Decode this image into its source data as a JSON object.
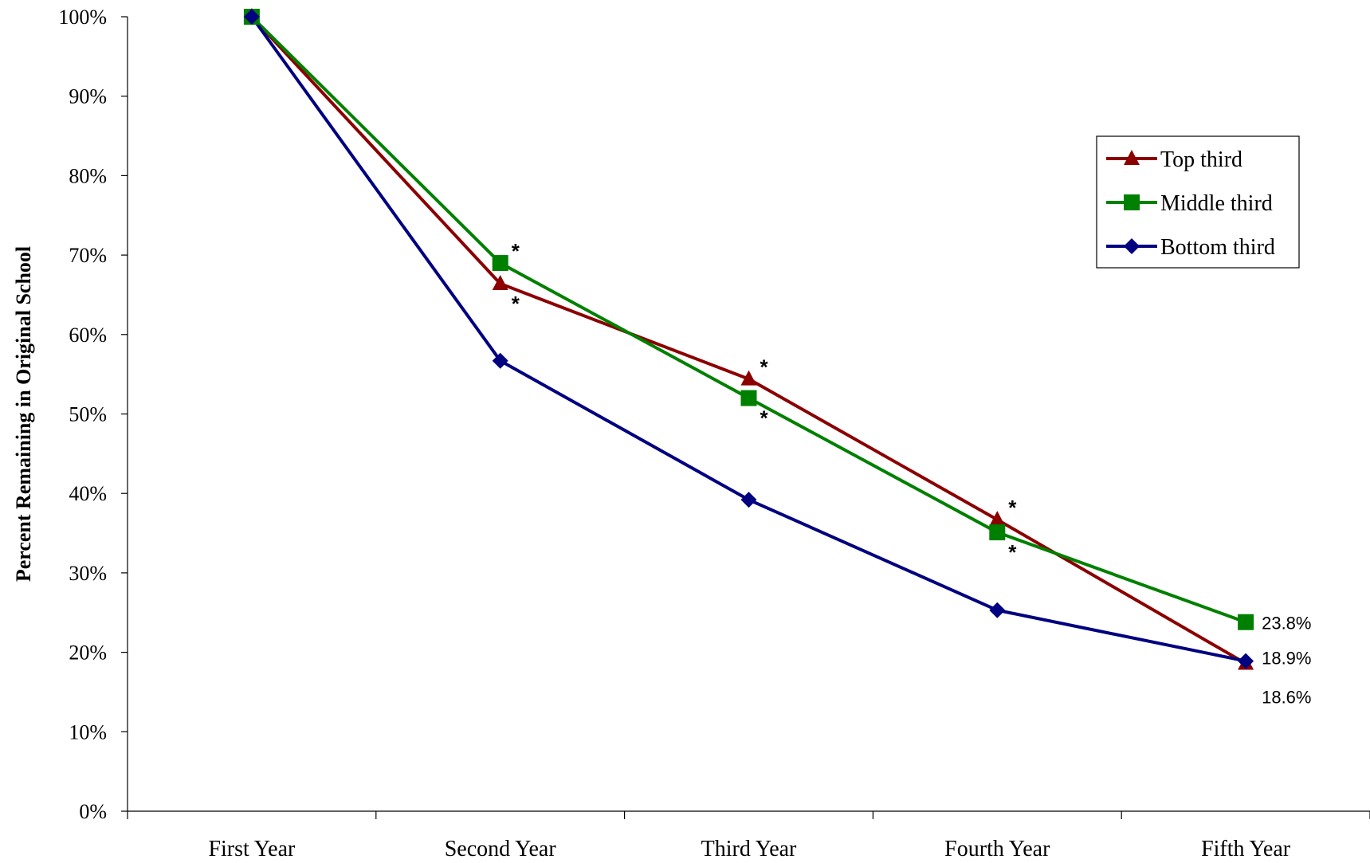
{
  "chart_data": {
    "type": "line",
    "title": "",
    "xlabel": "",
    "ylabel": "Percent Remaining in Original School",
    "ylim": [
      0,
      100
    ],
    "y_ticks": [
      "0%",
      "10%",
      "20%",
      "30%",
      "40%",
      "50%",
      "60%",
      "70%",
      "80%",
      "90%",
      "100%"
    ],
    "categories": [
      "First Year",
      "Second Year",
      "Third Year",
      "Fourth Year",
      "Fifth Year"
    ],
    "series": [
      {
        "name": "Top third",
        "color": "#8B0000",
        "marker": "triangle",
        "values": [
          100,
          66.4,
          54.4,
          36.7,
          18.6
        ],
        "stars": [
          "",
          "below",
          "above",
          "above",
          ""
        ]
      },
      {
        "name": "Middle third",
        "color": "#008000",
        "marker": "square",
        "values": [
          100,
          69.0,
          52.0,
          35.1,
          23.8
        ],
        "stars": [
          "",
          "above",
          "below",
          "below",
          ""
        ]
      },
      {
        "name": "Bottom third",
        "color": "#000080",
        "marker": "diamond",
        "values": [
          100,
          56.7,
          39.2,
          25.3,
          18.9
        ],
        "stars": [
          "",
          "",
          "",
          "",
          ""
        ]
      }
    ],
    "end_labels": [
      "18.6%",
      "23.8%",
      "18.9%"
    ],
    "star_symbol": "*",
    "legend_position": "top-right",
    "grid": false
  }
}
